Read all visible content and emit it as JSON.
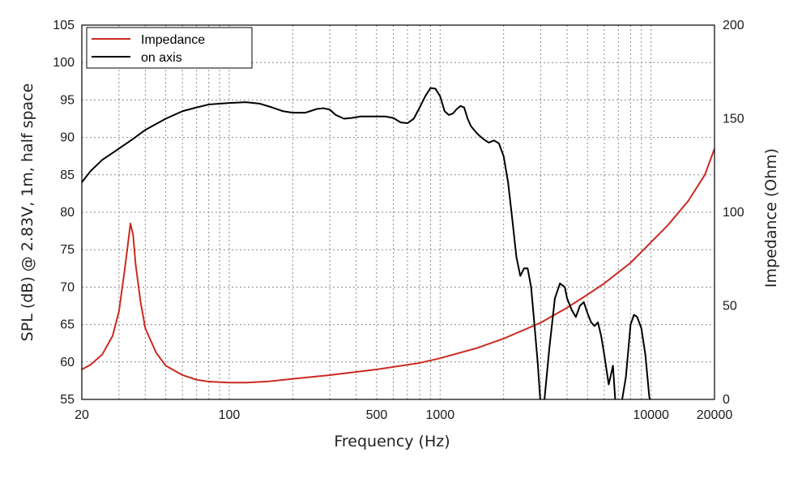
{
  "chart_data": {
    "type": "line",
    "xlabel": "Frequency (Hz)",
    "ylabel_left": "SPL (dB) @ 2.83V, 1m, half space",
    "ylabel_right": "Impedance (Ohm)",
    "x_scale": "log",
    "xlim": [
      20,
      20000
    ],
    "ylim_left": [
      55,
      105
    ],
    "ylim_right": [
      0,
      200
    ],
    "x_ticks": [
      20,
      100,
      500,
      1000,
      10000,
      20000
    ],
    "x_tick_labels": [
      "20",
      "100",
      "500",
      "1000",
      "10000",
      "20000"
    ],
    "y_ticks_left": [
      55,
      60,
      65,
      70,
      75,
      80,
      85,
      90,
      95,
      100,
      105
    ],
    "y_ticks_right": [
      0,
      50,
      100,
      150,
      200
    ],
    "grid": true,
    "legend_position": "top-left",
    "series": [
      {
        "name": "Impedance",
        "axis": "right",
        "color": "#cc2a1f",
        "x": [
          20,
          22,
          25,
          28,
          30,
          32,
          33,
          34,
          35,
          36,
          38,
          40,
          45,
          50,
          60,
          70,
          80,
          100,
          120,
          150,
          200,
          300,
          500,
          800,
          1000,
          1500,
          2000,
          3000,
          4000,
          5000,
          6000,
          8000,
          10000,
          12000,
          15000,
          18000,
          20000
        ],
        "y": [
          16,
          18.5,
          24,
          34,
          47,
          70,
          82,
          94,
          88,
          72,
          52,
          38,
          25,
          18,
          13,
          10.5,
          9.5,
          9,
          9,
          9.5,
          11,
          13,
          16,
          19.5,
          22,
          27.5,
          32.5,
          41,
          49,
          56,
          62,
          73,
          84,
          93,
          106,
          120,
          134
        ]
      },
      {
        "name": "on axis",
        "axis": "left",
        "color": "#000000",
        "x": [
          20,
          22,
          25,
          30,
          35,
          40,
          50,
          60,
          70,
          80,
          100,
          120,
          140,
          160,
          180,
          200,
          230,
          260,
          280,
          300,
          320,
          350,
          380,
          420,
          500,
          550,
          600,
          650,
          700,
          750,
          800,
          850,
          900,
          950,
          1000,
          1050,
          1100,
          1150,
          1200,
          1250,
          1300,
          1350,
          1400,
          1500,
          1600,
          1700,
          1800,
          1900,
          2000,
          2100,
          2200,
          2300,
          2400,
          2500,
          2600,
          2700,
          2800,
          2900,
          3000,
          3100,
          3300,
          3500,
          3700,
          3900,
          4000,
          4200,
          4400,
          4600,
          4800,
          5000,
          5200,
          5400,
          5600,
          5800,
          6000,
          6300,
          6600,
          6800,
          7000,
          7200,
          7600,
          8000,
          8300,
          8600,
          9000,
          9400,
          9800,
          10000
        ],
        "y": [
          84,
          85.5,
          87,
          88.5,
          89.8,
          91,
          92.5,
          93.5,
          94,
          94.4,
          94.6,
          94.7,
          94.5,
          94,
          93.5,
          93.3,
          93.3,
          93.8,
          93.9,
          93.7,
          93,
          92.5,
          92.6,
          92.8,
          92.8,
          92.8,
          92.6,
          92,
          91.9,
          92.5,
          94,
          95.5,
          96.6,
          96.5,
          95.5,
          93.5,
          93,
          93.2,
          93.8,
          94.2,
          94,
          92.5,
          91.5,
          90.5,
          89.8,
          89.3,
          89.6,
          89.2,
          87.5,
          84,
          79,
          74,
          71.5,
          72.5,
          72.5,
          70,
          65,
          60,
          54,
          54,
          62,
          68.5,
          70.5,
          70,
          68.5,
          67,
          66,
          67.5,
          68,
          66.5,
          65.3,
          64.8,
          65.3,
          63.5,
          61,
          57,
          59.5,
          54,
          54,
          54,
          58,
          65,
          66.3,
          66,
          64.5,
          61,
          55.5,
          54
        ]
      }
    ]
  }
}
